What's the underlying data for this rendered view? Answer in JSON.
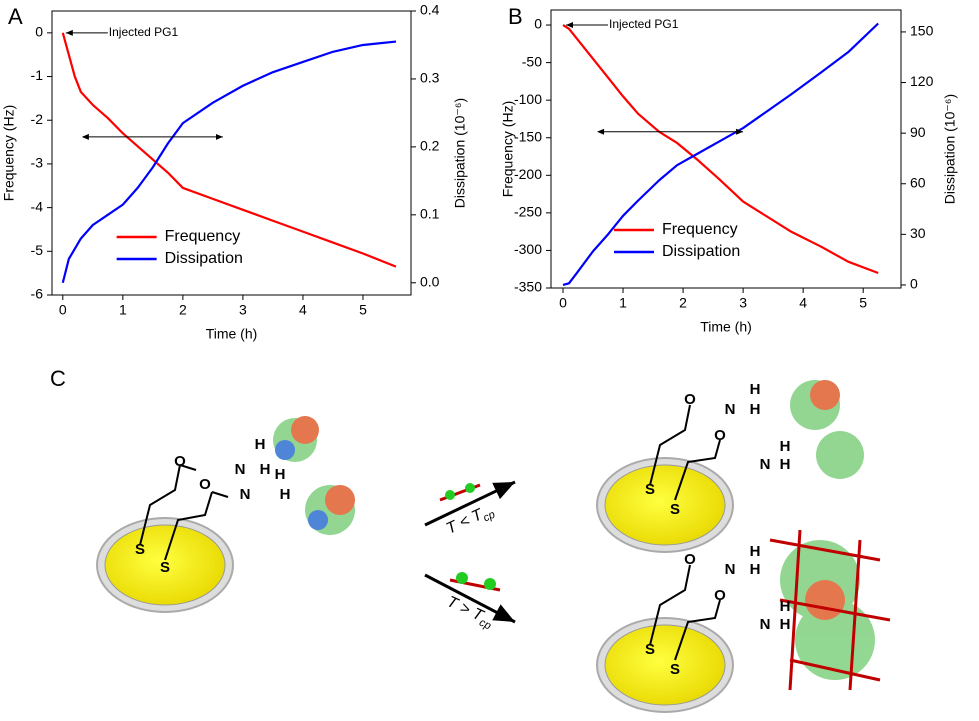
{
  "chart_data": [
    {
      "type": "line",
      "panel": "A",
      "xlabel": "Time (h)",
      "ylabel": "Frequency (Hz)",
      "y2label": "Dissipation (10⁻⁶)",
      "xlim": [
        -0.18,
        5.8
      ],
      "xticks": [
        0,
        1,
        2,
        3,
        4,
        5
      ],
      "ylim": [
        -6,
        0.5
      ],
      "yticks": [
        0,
        -1,
        -2,
        -3,
        -4,
        -5,
        -6
      ],
      "y2lim": [
        -0.018,
        0.4
      ],
      "y2ticks": [
        {
          "value": 0,
          "label": "0.0"
        },
        0.1,
        0.2,
        0.3,
        0.4
      ],
      "x": [
        0,
        0.1,
        0.2,
        0.3,
        0.5,
        0.75,
        1,
        1.25,
        1.5,
        1.75,
        2,
        2.5,
        3,
        3.5,
        4,
        4.5,
        5,
        5.55
      ],
      "series": [
        {
          "name": "Frequency",
          "color": "#ff0000",
          "values": [
            0,
            -0.5,
            -1.0,
            -1.35,
            -1.65,
            -1.95,
            -2.3,
            -2.6,
            -2.9,
            -3.2,
            -3.55,
            -3.8,
            -4.05,
            -4.3,
            -4.55,
            -4.8,
            -5.05,
            -5.35
          ]
        },
        {
          "name": "Dissipation",
          "color": "#0000ff",
          "axis": "y2",
          "values": [
            0.0,
            0.035,
            0.05,
            0.065,
            0.085,
            0.1,
            0.115,
            0.14,
            0.17,
            0.205,
            0.235,
            0.265,
            0.29,
            0.31,
            0.325,
            0.34,
            0.35,
            0.355
          ]
        }
      ],
      "annotation": "Injected PG1",
      "legend": "lower center"
    },
    {
      "type": "line",
      "panel": "B",
      "xlabel": "Time (h)",
      "ylabel": "Frequency (Hz)",
      "y2label": "Dissipation (10⁻⁶)",
      "xlim": [
        -0.2,
        5.63
      ],
      "xticks": [
        0,
        1,
        2,
        3,
        4,
        5
      ],
      "ylim": [
        -350,
        20
      ],
      "yticks": [
        0,
        -50,
        -100,
        -150,
        -200,
        -250,
        -300,
        -350
      ],
      "y2lim": [
        -1.8,
        163
      ],
      "y2ticks": [
        0,
        30,
        60,
        90,
        120,
        150
      ],
      "x": [
        0,
        0.1,
        0.25,
        0.5,
        0.75,
        1,
        1.25,
        1.6,
        1.9,
        2.25,
        2.6,
        3,
        3.4,
        3.8,
        4.3,
        4.75,
        5.25
      ],
      "series": [
        {
          "name": "Frequency",
          "color": "#ff0000",
          "values": [
            0,
            -5,
            -20,
            -45,
            -70,
            -95,
            -118,
            -142,
            -157,
            -180,
            -205,
            -235,
            -255,
            -275,
            -295,
            -315,
            -330
          ]
        },
        {
          "name": "Dissipation",
          "color": "#0000ff",
          "axis": "y2",
          "values": [
            0,
            1,
            8,
            20,
            30,
            41,
            50,
            62,
            71,
            78,
            85,
            93,
            103,
            113,
            126,
            138,
            155
          ]
        }
      ],
      "annotation": "Injected PG1",
      "legend": "lower center"
    }
  ],
  "diagram": {
    "panel": "C",
    "conditions": [
      {
        "text": "T < T",
        "sub": "cp"
      },
      {
        "text": "T > T",
        "sub": "cp"
      }
    ],
    "atoms": [
      "S",
      "O",
      "N",
      "H"
    ]
  }
}
